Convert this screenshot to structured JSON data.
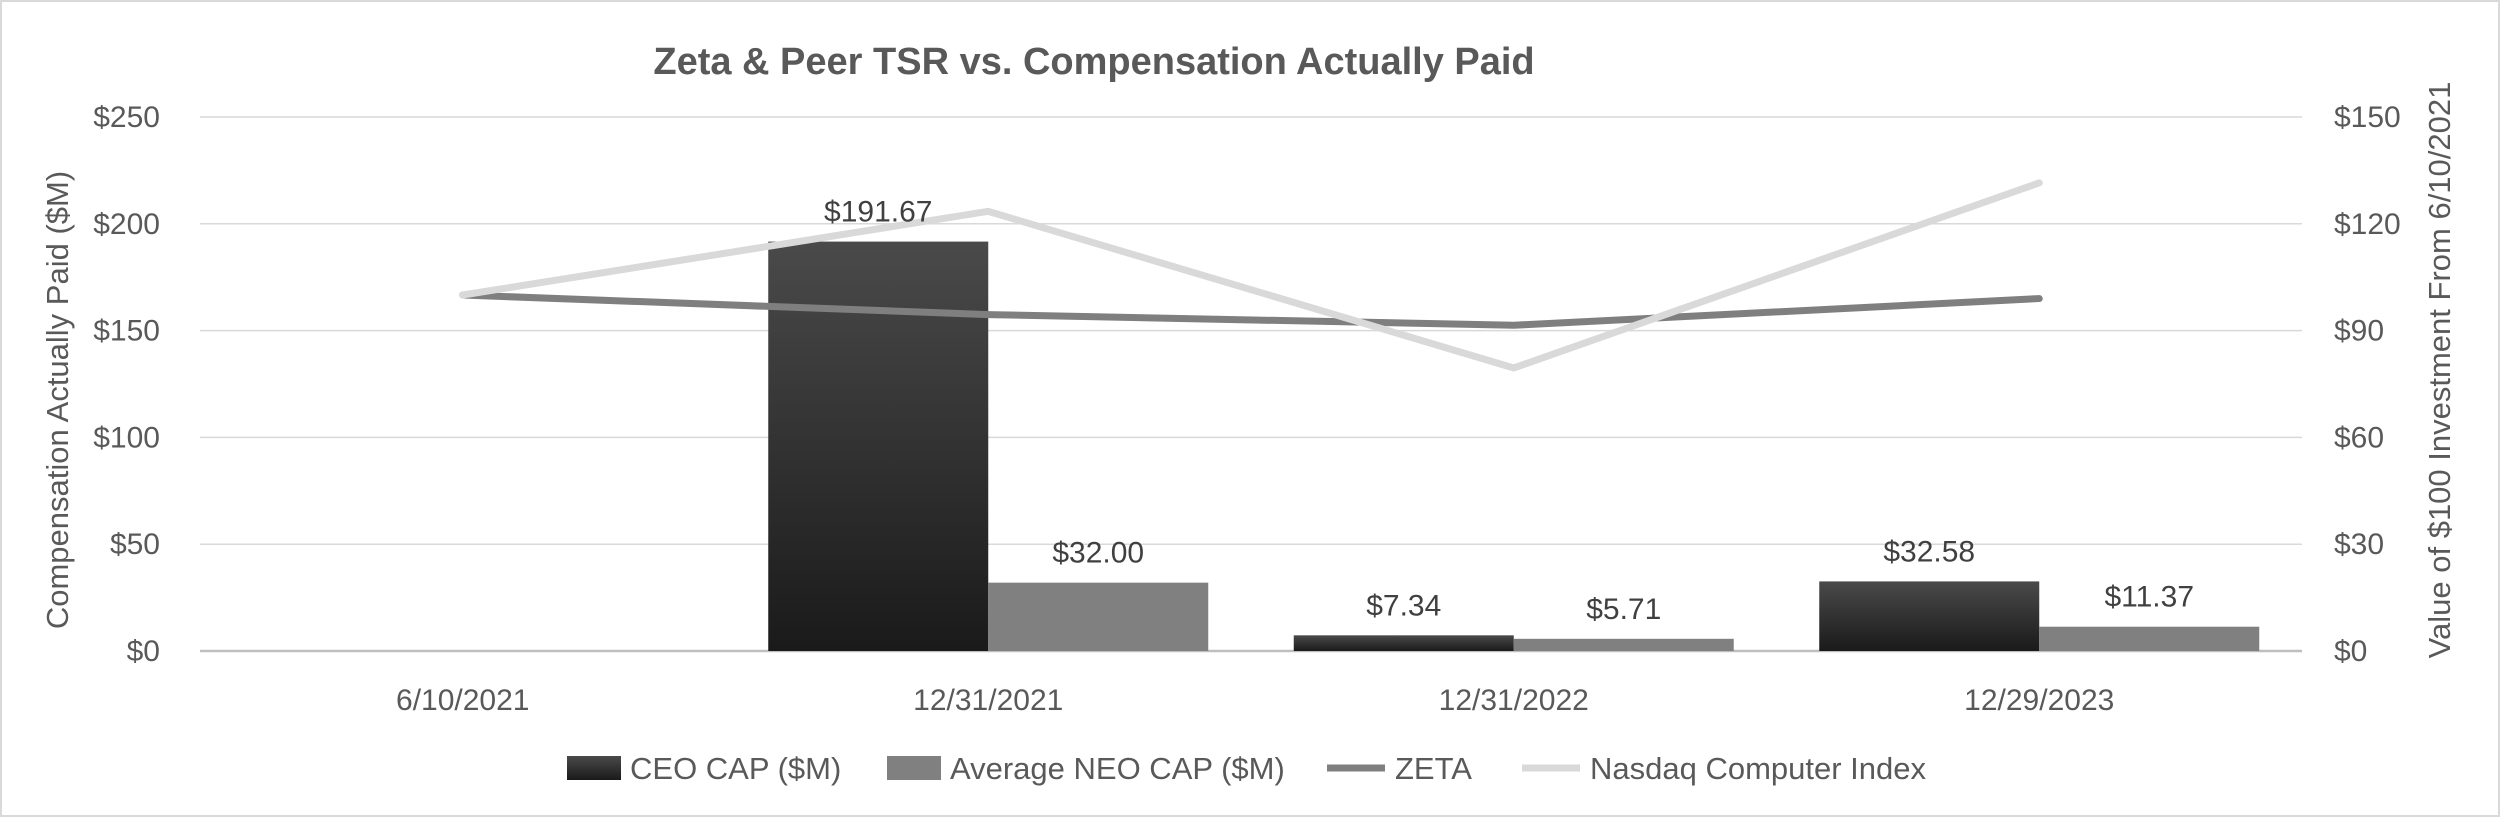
{
  "chart_data": {
    "type": "bar",
    "title": "Zeta & Peer TSR vs. Compensation Actually Paid",
    "categories": [
      "6/10/2021",
      "12/31/2021",
      "12/31/2022",
      "12/29/2023"
    ],
    "y_left": {
      "label": "Compensation Actually Paid ($M)",
      "range": [
        0,
        250
      ],
      "ticks": [
        "$0",
        "$50",
        "$100",
        "$150",
        "$200",
        "$250"
      ]
    },
    "y_right": {
      "label": "Value of $100 Investment From 6/10/2021",
      "range": [
        0,
        150
      ],
      "ticks": [
        "$0",
        "$30",
        "$60",
        "$90",
        "$120",
        "$150"
      ]
    },
    "grid": true,
    "legend_position": "bottom",
    "series": [
      {
        "name": "CEO CAP ($M)",
        "kind": "bar",
        "axis": "left",
        "color": "#262626",
        "values": [
          null,
          191.67,
          7.34,
          32.58
        ],
        "labels": [
          "",
          "$191.67",
          "$7.34",
          "$32.58"
        ]
      },
      {
        "name": "Average NEO CAP ($M)",
        "kind": "bar",
        "axis": "left",
        "color": "#808080",
        "values": [
          null,
          32.0,
          5.71,
          11.37
        ],
        "labels": [
          "",
          "$32.00",
          "$5.71",
          "$11.37"
        ]
      },
      {
        "name": "ZETA",
        "kind": "line",
        "axis": "right",
        "color": "#7f7f7f",
        "values": [
          100,
          94.5,
          91.5,
          99
        ]
      },
      {
        "name": "Nasdaq Computer Index",
        "kind": "line",
        "axis": "right",
        "color": "#d9d9d9",
        "values": [
          100,
          123.5,
          79.5,
          131.5
        ]
      }
    ]
  }
}
